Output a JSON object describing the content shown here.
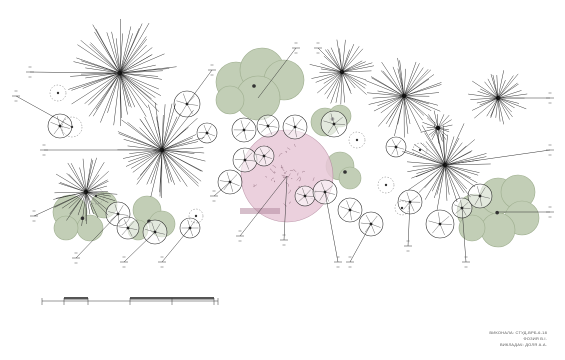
{
  "caption": {
    "line1": "ВИКОНАЛА: СТУД-ВРБ-6-18",
    "line2": "ФОЗИЯ В.І.",
    "line3": "ВИКЛАДАЧ: ДОЛЯ А.А."
  },
  "colors": {
    "shrub_fill": "#c2ceb6",
    "shrub_stroke": "#9eae8f",
    "flowerbed_fill": "#e8c8d8",
    "ink": "#222222",
    "light_ink": "#777777"
  },
  "icons": {
    "conifer": "conifer-tree-icon",
    "deciduous": "deciduous-tree-icon",
    "shrub_group": "shrub-cluster-icon",
    "flowerbed": "flowerbed-icon",
    "scale": "scale-bar-icon"
  }
}
